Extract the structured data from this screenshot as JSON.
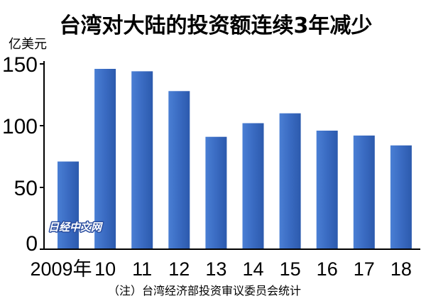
{
  "chart_data": {
    "type": "bar",
    "title": "台湾对大陆的投资额连续3年减少",
    "ylabel": "亿美元",
    "xlabel": "",
    "categories": [
      "2009年",
      "10",
      "11",
      "12",
      "13",
      "14",
      "15",
      "16",
      "17",
      "18"
    ],
    "values": [
      71,
      146,
      144,
      128,
      91,
      102,
      110,
      96,
      92,
      84
    ],
    "ylim": [
      0,
      150
    ],
    "yticks": [
      0,
      50,
      100,
      150
    ],
    "grid": false,
    "legend": "none"
  },
  "footnote": "（注）台湾经济部投资审议委员会统计",
  "watermark": "日经中文网",
  "colors": {
    "background": "#ffffff",
    "text": "#000000",
    "bar": "#3a6bc2",
    "watermark_outline": "#2a4ea0"
  }
}
